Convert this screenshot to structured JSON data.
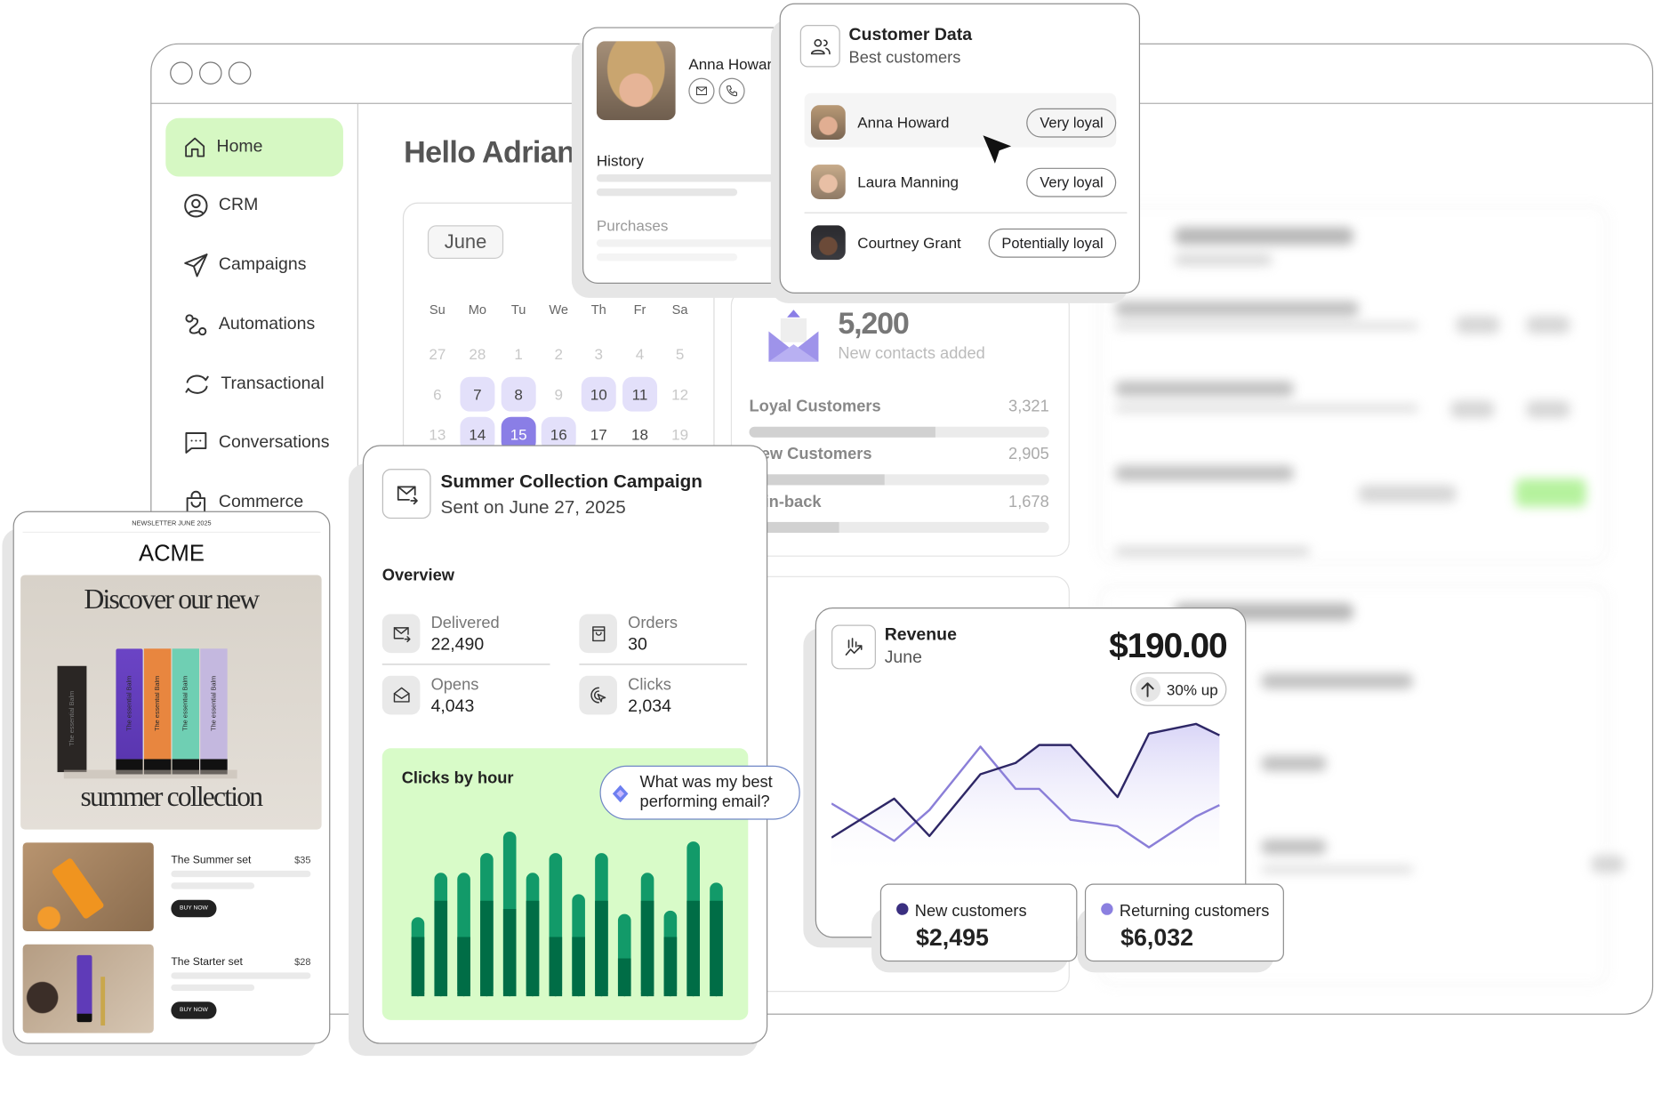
{
  "window": {
    "greeting": "Hello Adrian"
  },
  "sidebar": {
    "items": [
      {
        "label": "Home",
        "icon": "home-icon",
        "active": true
      },
      {
        "label": "CRM",
        "icon": "user-circle-icon"
      },
      {
        "label": "Campaigns",
        "icon": "paper-plane-icon"
      },
      {
        "label": "Automations",
        "icon": "automation-icon"
      },
      {
        "label": "Transactional",
        "icon": "refresh-icon"
      },
      {
        "label": "Conversations",
        "icon": "chat-icon"
      },
      {
        "label": "Commerce",
        "icon": "shopping-bag-icon"
      }
    ]
  },
  "calendar": {
    "month": "June",
    "weekdays": [
      "Su",
      "Mo",
      "Tu",
      "We",
      "Th",
      "Fr",
      "Sa"
    ],
    "rows": [
      [
        {
          "d": "27",
          "s": "muted"
        },
        {
          "d": "28",
          "s": "muted"
        },
        {
          "d": "1",
          "s": "muted"
        },
        {
          "d": "2",
          "s": "muted"
        },
        {
          "d": "3",
          "s": "muted"
        },
        {
          "d": "4",
          "s": "muted"
        },
        {
          "d": "5",
          "s": "muted"
        }
      ],
      [
        {
          "d": "6",
          "s": "muted"
        },
        {
          "d": "7",
          "s": "hl"
        },
        {
          "d": "8",
          "s": "hl"
        },
        {
          "d": "9",
          "s": "muted"
        },
        {
          "d": "10",
          "s": "hl"
        },
        {
          "d": "11",
          "s": "hl"
        },
        {
          "d": "12",
          "s": "muted"
        }
      ],
      [
        {
          "d": "13",
          "s": "muted"
        },
        {
          "d": "14",
          "s": "hl"
        },
        {
          "d": "15",
          "s": "sel"
        },
        {
          "d": "16",
          "s": "hl"
        },
        {
          "d": "17",
          "s": ""
        },
        {
          "d": "18",
          "s": ""
        },
        {
          "d": "19",
          "s": "muted"
        }
      ]
    ]
  },
  "contacts": {
    "total": "5,200",
    "total_label": "New contacts added",
    "segments": [
      {
        "label": "Loyal Customers",
        "value": "3,321",
        "fill": 0.62
      },
      {
        "label": "New Customers",
        "value": "2,905",
        "fill": 0.45
      },
      {
        "label": "Win-back",
        "value": "1,678",
        "fill": 0.3
      }
    ]
  },
  "profile": {
    "name": "Anna Howard",
    "history": "History",
    "purchases": "Purchases"
  },
  "customer_data": {
    "title": "Customer Data",
    "subtitle": "Best customers",
    "rows": [
      {
        "name": "Anna Howard",
        "status": "Very loyal"
      },
      {
        "name": "Laura Manning",
        "status": "Very loyal"
      },
      {
        "name": "Courtney Grant",
        "status": "Potentially loyal"
      }
    ]
  },
  "newsletter": {
    "header": "NEWSLETTER JUNE 2025",
    "brand": "ACME",
    "hero_line1": "Discover our new",
    "hero_line2": "summer collection",
    "tube_label": "The essential Balm",
    "products": [
      {
        "name": "The Summer set",
        "price": "$35",
        "cta": "BUY NOW"
      },
      {
        "name": "The Starter set",
        "price": "$28",
        "cta": "BUY NOW"
      }
    ]
  },
  "campaign": {
    "title": "Summer Collection Campaign",
    "sent": "Sent on June 27, 2025",
    "overview": "Overview",
    "stats": [
      {
        "label": "Delivered",
        "value": "22,490",
        "icon": "mail-send-icon"
      },
      {
        "label": "Orders",
        "value": "30",
        "icon": "shopping-bag-icon"
      },
      {
        "label": "Opens",
        "value": "4,043",
        "icon": "mail-open-icon"
      },
      {
        "label": "Clicks",
        "value": "2,034",
        "icon": "click-icon"
      }
    ],
    "ai_prompt": "What was my best performing email?"
  },
  "revenue": {
    "title": "Revenue",
    "period": "June",
    "amount": "$190.00",
    "change": "30% up",
    "legend": [
      {
        "label": "New customers",
        "value": "$2,495",
        "color": "#3a2f80"
      },
      {
        "label": "Returning customers",
        "value": "$6,032",
        "color": "#8b80e0"
      }
    ]
  },
  "chart_data": [
    {
      "type": "bar",
      "title": "Clicks by hour",
      "stacked": true,
      "grid": false,
      "colors": {
        "base": "#006d46",
        "top": "#129a69",
        "background": "#d8fbc8"
      },
      "series": [
        {
          "values": [
            36,
            58,
            36,
            58,
            53,
            58,
            36,
            36,
            58,
            23,
            58,
            36,
            58,
            58
          ]
        },
        {
          "values": [
            12,
            17,
            39,
            29,
            47,
            17,
            51,
            26,
            29,
            27,
            17,
            16,
            36,
            11
          ]
        }
      ]
    },
    {
      "type": "area",
      "grid": false,
      "x": [
        0,
        16,
        25,
        38,
        47,
        53,
        61,
        73,
        81,
        93,
        99
      ],
      "series": [
        {
          "name": "New customers",
          "color": "#2e2766",
          "values": [
            25,
            49,
            26,
            64,
            71,
            82,
            82,
            50,
            89,
            95,
            88
          ]
        },
        {
          "name": "Returning customers",
          "color": "#8b7fd8",
          "values": [
            46,
            23,
            42,
            81,
            55,
            55,
            36,
            32,
            19,
            38,
            45
          ]
        }
      ]
    }
  ]
}
